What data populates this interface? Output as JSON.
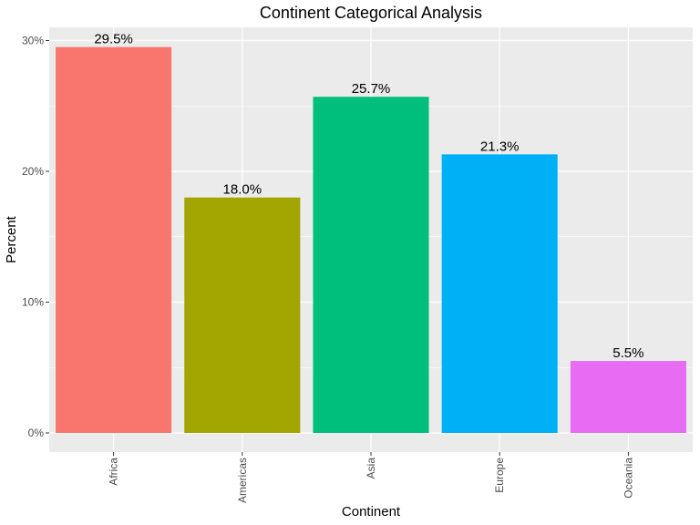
{
  "chart_data": {
    "type": "bar",
    "title": "Continent Categorical Analysis",
    "xlabel": "Continent",
    "ylabel": "Percent",
    "categories": [
      "Africa",
      "Americas",
      "Asia",
      "Europe",
      "Oceania"
    ],
    "values": [
      29.5,
      18.0,
      25.7,
      21.3,
      5.5
    ],
    "data_labels": [
      "29.5%",
      "18.0%",
      "25.7%",
      "21.3%",
      "5.5%"
    ],
    "colors": [
      "#F8766D",
      "#A3A500",
      "#00BF7D",
      "#00B0F6",
      "#E76BF3"
    ],
    "ylim": [
      0,
      31
    ],
    "yticks": [
      0,
      10,
      20,
      30
    ],
    "ytick_labels": [
      "0%",
      "10%",
      "20%",
      "30%"
    ],
    "grid": true,
    "legend": "none",
    "panel_background": "#EBEBEB",
    "grid_color": "#FFFFFF"
  }
}
